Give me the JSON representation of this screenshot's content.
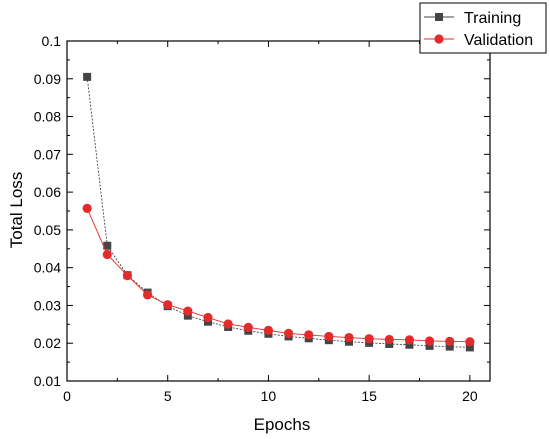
{
  "chart_data": {
    "type": "line",
    "title": "",
    "xlabel": "Epochs",
    "ylabel": "Total Loss",
    "xlim": [
      0,
      21
    ],
    "ylim": [
      0.01,
      0.1
    ],
    "xticks": [
      0,
      5,
      10,
      15,
      20
    ],
    "xtick_labels": [
      "0",
      "5",
      "10",
      "15",
      "20"
    ],
    "yticks": [
      0.01,
      0.02,
      0.03,
      0.04,
      0.05,
      0.06,
      0.07,
      0.08,
      0.09,
      0.1
    ],
    "ytick_labels": [
      "0.01",
      "0.02",
      "0.03",
      "0.04",
      "0.05",
      "0.06",
      "0.07",
      "0.08",
      "0.09",
      "0.1"
    ],
    "grid": false,
    "legend_position": "top-right",
    "x": [
      1,
      2,
      3,
      4,
      5,
      6,
      7,
      8,
      9,
      10,
      11,
      12,
      13,
      14,
      15,
      16,
      17,
      18,
      19,
      20
    ],
    "series": [
      {
        "name": "Training",
        "marker": "square",
        "color": "#444444",
        "values": [
          0.0905,
          0.0458,
          0.038,
          0.0334,
          0.0298,
          0.0273,
          0.0257,
          0.0243,
          0.0233,
          0.0225,
          0.0218,
          0.0213,
          0.0208,
          0.0204,
          0.0201,
          0.0198,
          0.0196,
          0.0193,
          0.0191,
          0.0189
        ]
      },
      {
        "name": "Validation",
        "marker": "circle",
        "color": "#e32b2b",
        "values": [
          0.0557,
          0.0435,
          0.0379,
          0.0328,
          0.0302,
          0.0285,
          0.0268,
          0.0251,
          0.0242,
          0.0234,
          0.0226,
          0.0222,
          0.0218,
          0.0215,
          0.0212,
          0.021,
          0.0209,
          0.0206,
          0.0205,
          0.0204
        ]
      }
    ]
  }
}
